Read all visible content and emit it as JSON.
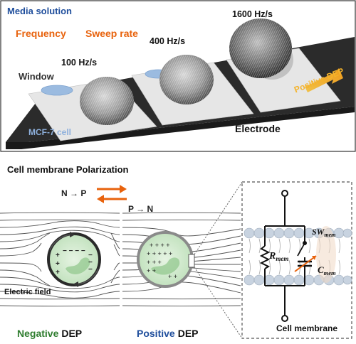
{
  "top_panel": {
    "media_label": "Media solution",
    "frequency_label": "Frequency",
    "sweep_label": "Sweep rate",
    "rate_1": "100 Hz/s",
    "rate_2": "400 Hz/s",
    "rate_3": "1600 Hz/s",
    "window_label": "Window",
    "cell_label": "MCF-7 cell",
    "electrode_label": "Electrode",
    "positive_dep_label": "Positive DEP"
  },
  "bottom_panel": {
    "heading": "Cell membrane  Polarization",
    "n_to_p": "N → P",
    "p_to_n": "P → N",
    "electric_field_label": "Electric field",
    "negative_word": "Negative",
    "positive_word": "Positive",
    "dep_word": "DEP",
    "cell_membrane_label": "Cell membrane",
    "r_symbol": "R",
    "r_sub": "mem",
    "sw_symbol": "SW",
    "sw_sub": "mem",
    "c_symbol": "C",
    "c_sub": "mem"
  },
  "colors": {
    "blue_label": "#1f4e9c",
    "orange_label": "#e8620c",
    "yellow_arrow": "#f5a623",
    "green_label": "#2f7d2f",
    "cell_fill": "#cfe9cc"
  }
}
